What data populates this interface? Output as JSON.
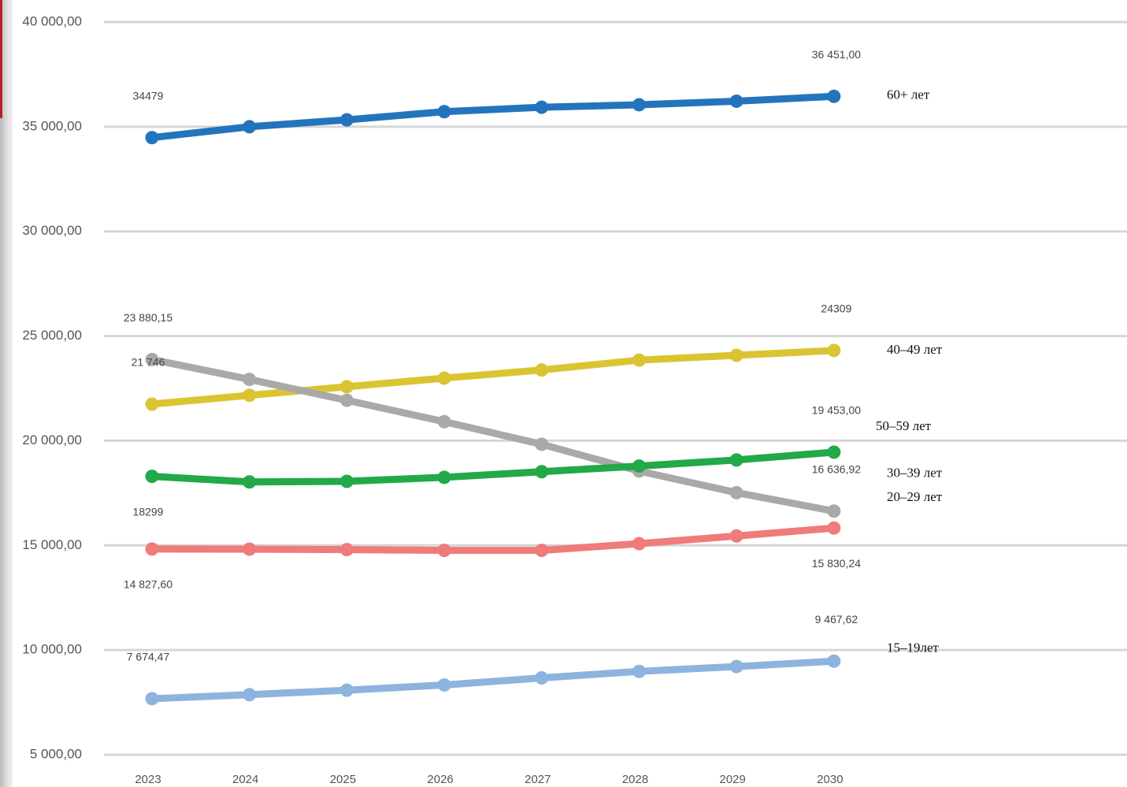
{
  "chart_data": {
    "type": "line",
    "x": [
      "2023",
      "2024",
      "2025",
      "2026",
      "2027",
      "2028",
      "2029",
      "2030"
    ],
    "ylim": [
      5000,
      40000
    ],
    "yticks": [
      "5 000,00",
      "10 000,00",
      "15 000,00",
      "20 000,00",
      "25 000,00",
      "30 000,00",
      "35 000,00",
      "40 000,00"
    ],
    "grid": true,
    "series": [
      {
        "name": "60+ лет",
        "color": "#2474bd",
        "values": [
          34479,
          35000,
          35330,
          35720,
          35930,
          36050,
          36220,
          36451
        ],
        "labels": [
          {
            "index": 0,
            "text": "34479",
            "pos": "above"
          },
          {
            "index": 7,
            "text": "36 451,00",
            "pos": "above"
          }
        ]
      },
      {
        "name": "40–49 лет",
        "color": "#dbc432",
        "values": [
          21746,
          22170,
          22580,
          22990,
          23380,
          23850,
          24080,
          24309
        ],
        "labels": [
          {
            "index": 0,
            "text": "21 746",
            "pos": "above"
          },
          {
            "index": 7,
            "text": "24309",
            "pos": "above"
          }
        ]
      },
      {
        "name": "20–29 лет",
        "color": "#a9a9a9",
        "values": [
          23880.15,
          22930,
          21930,
          20910,
          19830,
          18550,
          17520,
          16636.92
        ],
        "labels": [
          {
            "index": 0,
            "text": "23 880,15",
            "pos": "above"
          },
          {
            "index": 7,
            "text": "16 636,92",
            "pos": "above"
          }
        ]
      },
      {
        "name": "50–59 лет",
        "color": "#22a948",
        "values": [
          18299,
          18030,
          18060,
          18250,
          18520,
          18790,
          19080,
          19453
        ],
        "labels": [
          {
            "index": 0,
            "text": "18299",
            "pos": "below"
          },
          {
            "index": 7,
            "text": "19 453,00",
            "pos": "above"
          }
        ]
      },
      {
        "name": "30–39 лет",
        "color": "#ef7b7b",
        "values": [
          14827.6,
          14820,
          14800,
          14760,
          14760,
          15080,
          15450,
          15830.24
        ],
        "labels": [
          {
            "index": 0,
            "text": "14 827,60",
            "pos": "below"
          },
          {
            "index": 7,
            "text": "15 830,24",
            "pos": "below"
          }
        ]
      },
      {
        "name": "15–19лет",
        "color": "#8db4de",
        "values": [
          7674.47,
          7870,
          8080,
          8330,
          8670,
          8980,
          9210,
          9467.62
        ],
        "labels": [
          {
            "index": 0,
            "text": "7 674,47",
            "pos": "above"
          },
          {
            "index": 7,
            "text": "9 467,62",
            "pos": "above"
          }
        ]
      }
    ],
    "series_labels": [
      {
        "text": "60+ лет",
        "value": 36470
      },
      {
        "text": "40–49 лет",
        "value": 24310
      },
      {
        "text": "50–59 лет",
        "value": 20650
      },
      {
        "text": "30–39 лет",
        "value": 18420
      },
      {
        "text": "20–29 лет",
        "value": 17270
      },
      {
        "text": "15–19лет",
        "value": 10050
      }
    ]
  }
}
